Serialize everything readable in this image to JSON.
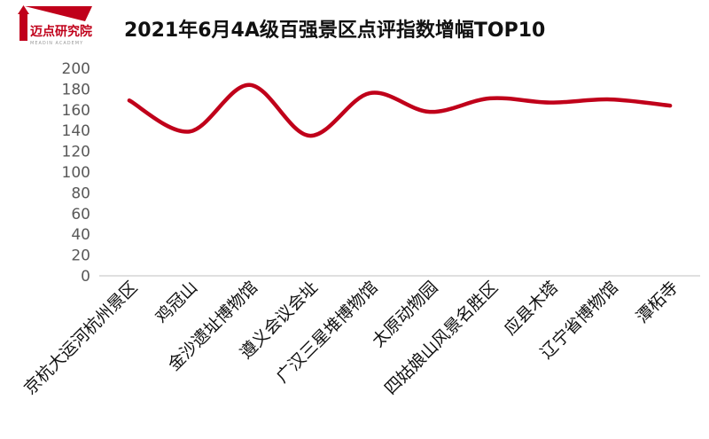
{
  "logo": {
    "text": "迈点研究院",
    "subtext": "MEADIN ACADEMY",
    "color": "#c0001a"
  },
  "chart_data": {
    "type": "line",
    "title": "2021年6月4A级百强景区点评指数增幅TOP10",
    "categories": [
      "京杭大运河杭州景区",
      "鸡冠山",
      "金沙遗址博物馆",
      "遵义会议会址",
      "广汉三星堆博物馆",
      "太原动物园",
      "四姑娘山风景名胜区",
      "应县木塔",
      "辽宁省博物馆",
      "潭柘寺"
    ],
    "series": [
      {
        "values": [
          169,
          139,
          184,
          135,
          176,
          158,
          171,
          167,
          170,
          164
        ],
        "color": "#c0001a"
      }
    ],
    "ylim": [
      0,
      200
    ],
    "yticks": [
      0,
      20,
      40,
      60,
      80,
      100,
      120,
      140,
      160,
      180,
      200
    ],
    "grid": false,
    "legend": "none"
  }
}
